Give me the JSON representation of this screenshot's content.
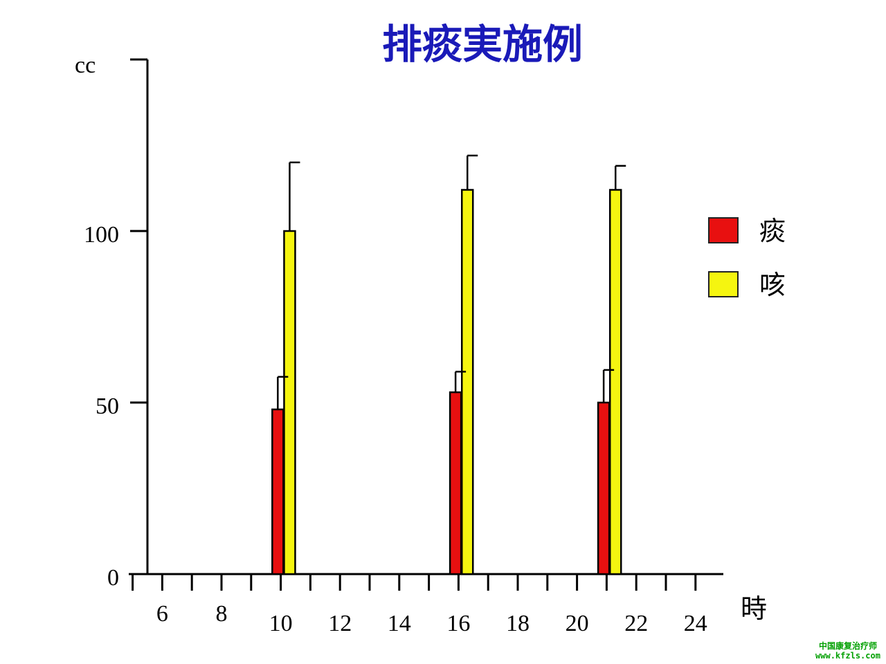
{
  "chart_data": {
    "type": "bar",
    "title": "排痰実施例",
    "ylabel": "cc",
    "xlabel": "時",
    "ylim": [
      0,
      150
    ],
    "yticks": [
      0,
      50,
      100
    ],
    "xlim": [
      5,
      25
    ],
    "xticks": [
      6,
      8,
      10,
      12,
      14,
      16,
      18,
      20,
      22,
      24
    ],
    "minor_xticks": [
      5,
      6,
      7,
      8,
      9,
      10,
      11,
      12,
      13,
      14,
      15,
      16,
      17,
      18,
      19,
      20,
      21,
      22,
      23,
      24
    ],
    "grid": false,
    "legend_position": "right",
    "series": [
      {
        "name": "痰",
        "color": "#e81010",
        "x": [
          9.9,
          15.9,
          20.9
        ],
        "values": [
          48,
          53,
          50
        ],
        "error_upper": [
          57.5,
          59,
          59.5
        ]
      },
      {
        "name": "咳",
        "color": "#f5f510",
        "x": [
          10.3,
          16.3,
          21.3
        ],
        "values": [
          100,
          112,
          112
        ],
        "error_upper": [
          120,
          122,
          119
        ]
      }
    ]
  },
  "watermark": {
    "line1": "中国康复治疗师",
    "line2": "www.kfzls.com"
  }
}
